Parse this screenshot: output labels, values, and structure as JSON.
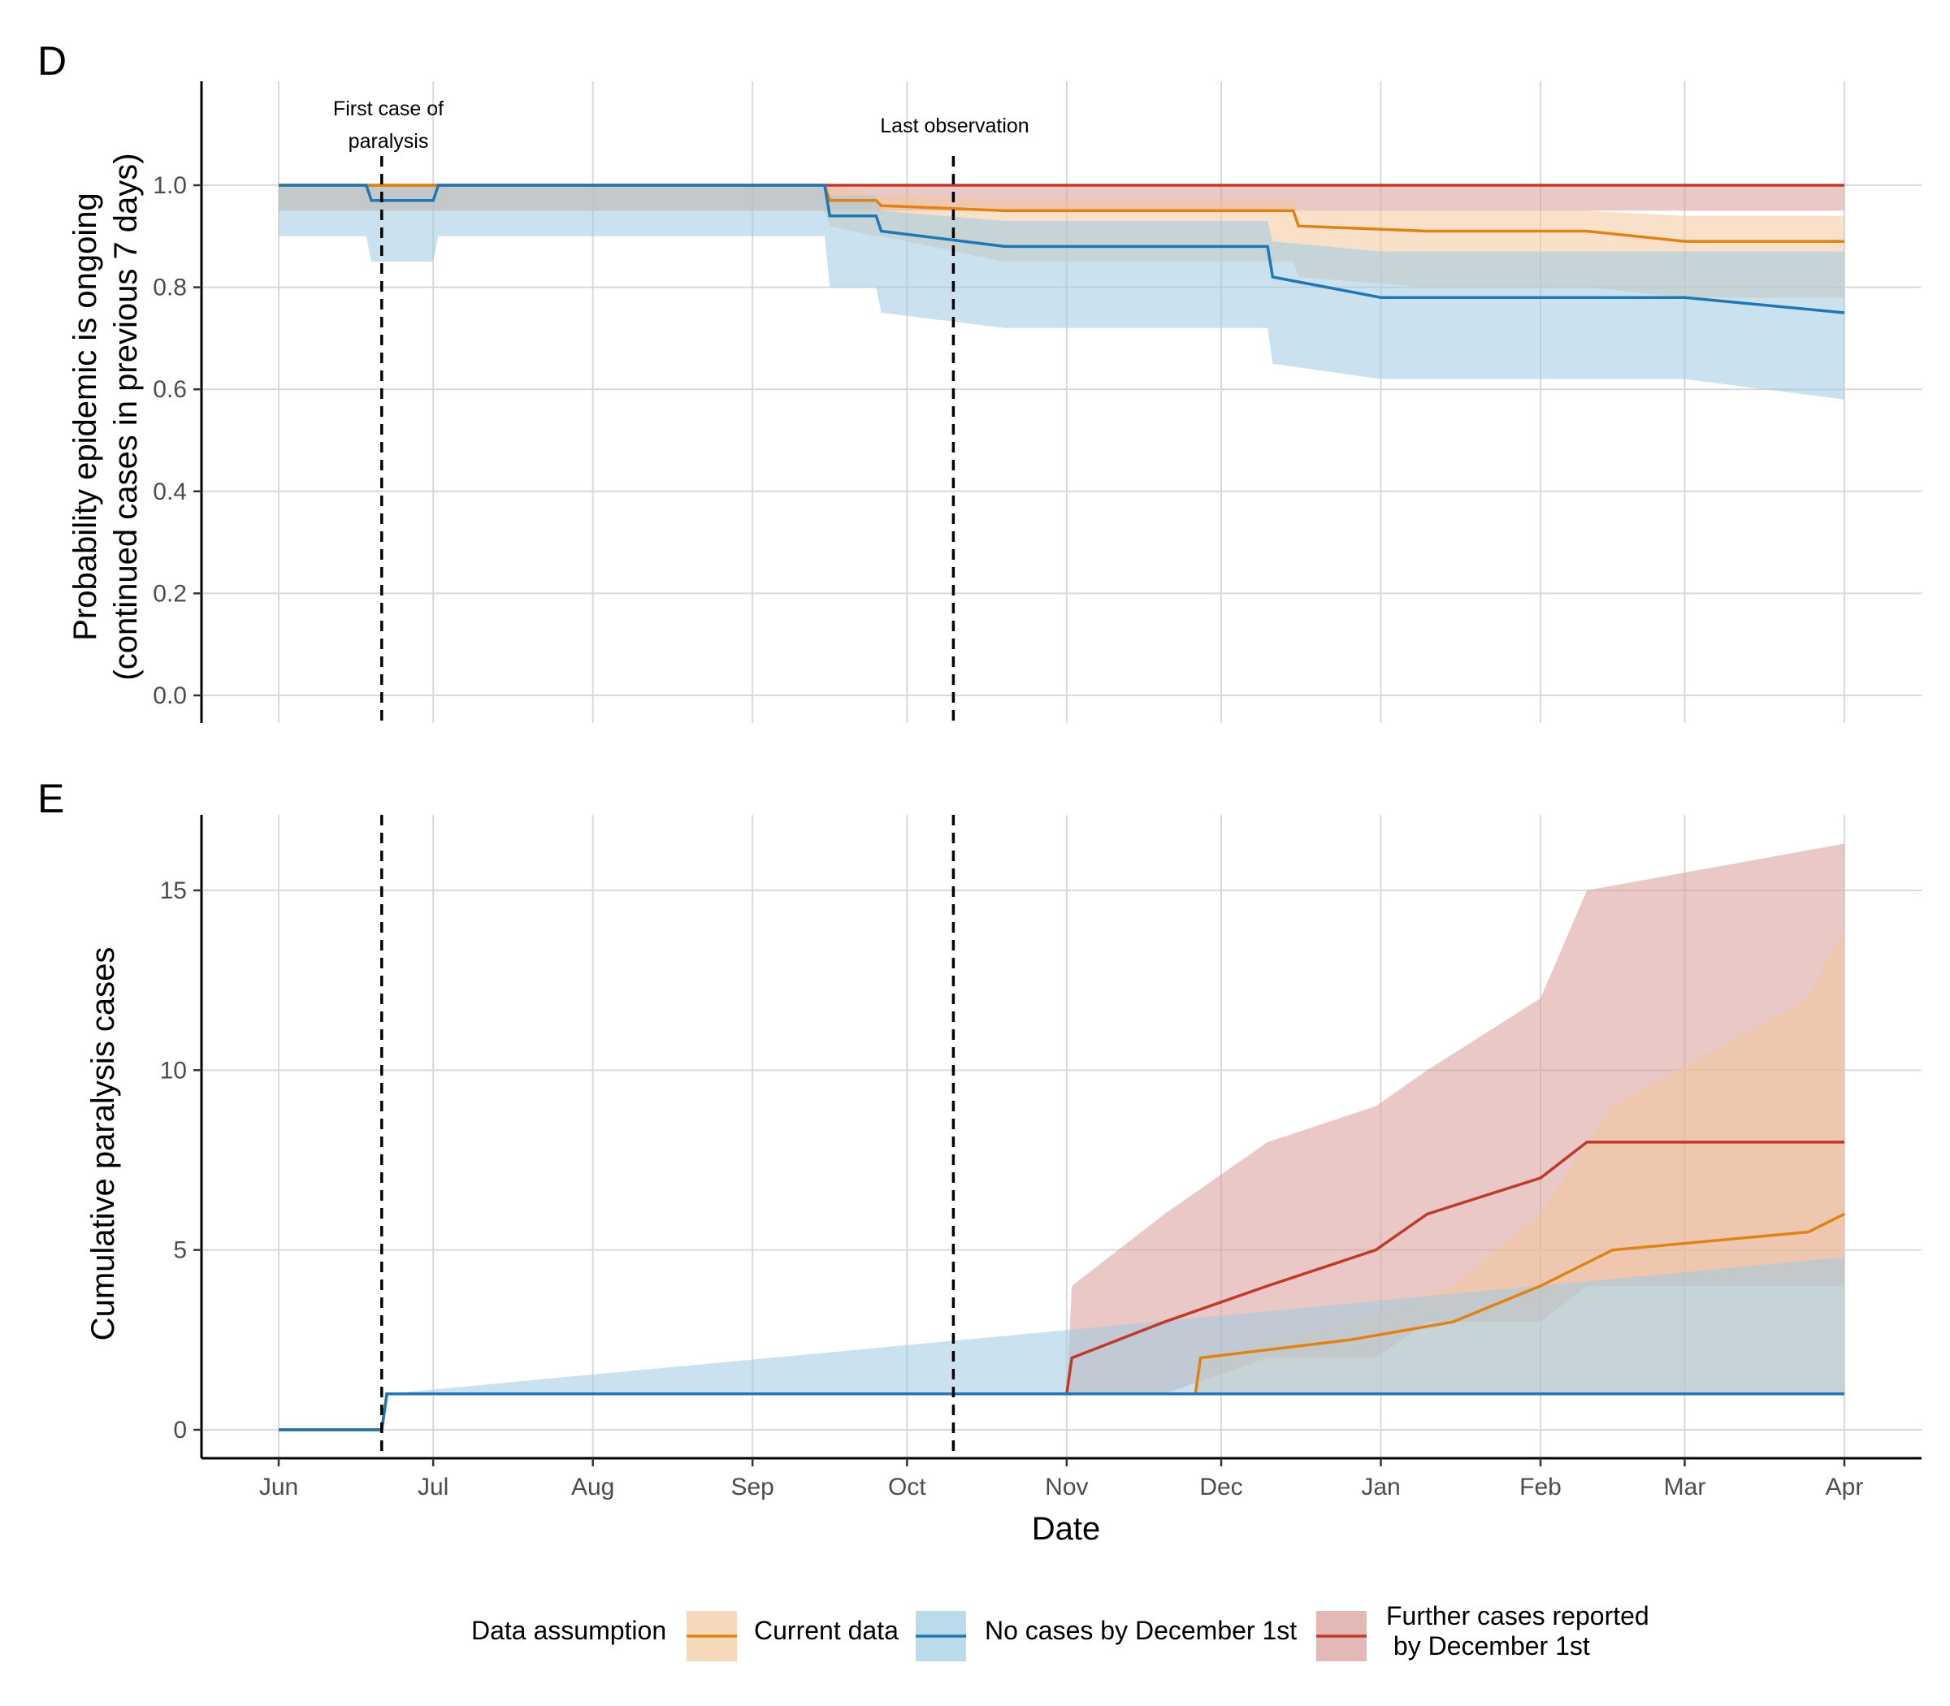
{
  "chart_data": [
    {
      "type": "line",
      "panel": "D",
      "ylabel": "Probability epidemic is ongoing",
      "ylabel_line2": "(continued cases in previous 7 days)",
      "xlabel": "",
      "x_categories": [
        "Jun",
        "Jul",
        "Aug",
        "Sep",
        "Oct",
        "Nov",
        "Dec",
        "Jan",
        "Feb",
        "Mar",
        "Apr"
      ],
      "ylim": [
        0,
        1.05
      ],
      "yticks": [
        "0.0",
        "0.2",
        "0.4",
        "0.6",
        "0.8",
        "1.0"
      ],
      "grid": true,
      "annotations": [
        {
          "text_line1": "First case of",
          "text_line2": "paralysis",
          "x": "Jun 21"
        },
        {
          "text": "Last observation",
          "x": "Oct 10"
        }
      ],
      "series": [
        {
          "name": "Further cases reported by December 1st",
          "color": "#c0392b",
          "ribbon_color": "#d99a95",
          "x": [
            "Jun 1",
            "Apr 1"
          ],
          "y": [
            1.0,
            1.0
          ],
          "lower": [
            0.95,
            0.95
          ],
          "upper": [
            1.0,
            1.0
          ]
        },
        {
          "name": "Current data",
          "color": "#e08214",
          "ribbon_color": "#f2c79d",
          "x": [
            "Jun 1",
            "Sep 15",
            "Sep 16",
            "Sep 25",
            "Sep 26",
            "Oct 20",
            "Dec 15",
            "Dec 16",
            "Jan 10",
            "Feb 10",
            "Mar 1",
            "Apr 1"
          ],
          "y": [
            1.0,
            1.0,
            0.97,
            0.97,
            0.96,
            0.95,
            0.95,
            0.92,
            0.91,
            0.91,
            0.89,
            0.89
          ],
          "lower": [
            0.95,
            0.95,
            0.92,
            0.9,
            0.9,
            0.85,
            0.85,
            0.82,
            0.8,
            0.8,
            0.78,
            0.78
          ],
          "upper": [
            1.0,
            1.0,
            1.0,
            0.98,
            0.98,
            0.97,
            0.97,
            0.95,
            0.95,
            0.95,
            0.94,
            0.94
          ]
        },
        {
          "name": "No cases by December 1st",
          "color": "#1f77b4",
          "ribbon_color": "#9ecae1",
          "x": [
            "Jun 1",
            "Jun 18",
            "Jun 19",
            "Jul 1",
            "Jul 2",
            "Sep 15",
            "Sep 16",
            "Sep 25",
            "Sep 26",
            "Oct 20",
            "Dec 10",
            "Dec 11",
            "Jan 1",
            "Mar 1",
            "Apr 1"
          ],
          "y": [
            1.0,
            1.0,
            0.97,
            0.97,
            1.0,
            1.0,
            0.94,
            0.94,
            0.91,
            0.88,
            0.88,
            0.82,
            0.78,
            0.78,
            0.75
          ],
          "lower": [
            0.9,
            0.9,
            0.85,
            0.85,
            0.9,
            0.9,
            0.8,
            0.8,
            0.75,
            0.72,
            0.72,
            0.65,
            0.62,
            0.62,
            0.58
          ],
          "upper": [
            1.0,
            1.0,
            1.0,
            1.0,
            1.0,
            1.0,
            0.98,
            0.98,
            0.95,
            0.93,
            0.93,
            0.89,
            0.87,
            0.87,
            0.87
          ]
        }
      ]
    },
    {
      "type": "line",
      "panel": "E",
      "ylabel": "Cumulative paralysis cases",
      "xlabel": "Date",
      "x_categories": [
        "Jun",
        "Jul",
        "Aug",
        "Sep",
        "Oct",
        "Nov",
        "Dec",
        "Jan",
        "Feb",
        "Mar",
        "Apr"
      ],
      "ylim": [
        -0.8,
        17
      ],
      "yticks": [
        "0",
        "5",
        "10",
        "15"
      ],
      "grid": true,
      "series": [
        {
          "name": "Further cases reported by December 1st",
          "color": "#c0392b",
          "ribbon_color": "#d99a95",
          "x": [
            "Jun 1",
            "Jun 21",
            "Jun 22",
            "Nov 1",
            "Nov 2",
            "Nov 20",
            "Dec 10",
            "Dec 31",
            "Jan 10",
            "Feb 1",
            "Feb 10",
            "Apr 1"
          ],
          "y": [
            0,
            0,
            1,
            1,
            2,
            3,
            4,
            5,
            6,
            7,
            8,
            8
          ],
          "lower": [
            0,
            0,
            1,
            1,
            1,
            1,
            2,
            2,
            3,
            3,
            4,
            4
          ],
          "upper": [
            0,
            0,
            1,
            1,
            4,
            6,
            8,
            9,
            10,
            12,
            15,
            16.3
          ]
        },
        {
          "name": "Current data",
          "color": "#e08214",
          "ribbon_color": "#f2c79d",
          "x": [
            "Jun 1",
            "Jun 21",
            "Jun 22",
            "Nov 26",
            "Nov 27",
            "Dec 26",
            "Jan 15",
            "Feb 1",
            "Feb 15",
            "Mar 25",
            "Apr 1"
          ],
          "y": [
            0,
            0,
            1,
            1,
            2,
            2.5,
            3,
            4,
            5,
            5.5,
            6
          ],
          "lower": [
            0,
            0,
            1,
            1,
            1,
            1,
            1,
            1,
            1,
            1,
            1
          ],
          "upper": [
            0,
            0,
            1,
            1,
            2,
            3,
            4,
            6,
            9,
            12,
            14
          ]
        },
        {
          "name": "No cases by December 1st",
          "color": "#1f77b4",
          "ribbon_color": "#9ecae1",
          "x": [
            "Jun 1",
            "Jun 21",
            "Jun 22",
            "Apr 1"
          ],
          "y": [
            0,
            0,
            1,
            1
          ],
          "lower": [
            0,
            0,
            1,
            1
          ],
          "upper": [
            0,
            0,
            1,
            4.8
          ]
        }
      ]
    }
  ],
  "legend": {
    "title": "Data assumption",
    "items": [
      {
        "label": "Current data",
        "color": "#e08214",
        "ribbon_color": "#f2c79d"
      },
      {
        "label": "No cases by December 1st",
        "color": "#1f77b4",
        "ribbon_color": "#9ecae1"
      },
      {
        "label_line1": "Further cases reported",
        "label_line2": " by December 1st",
        "color": "#c0392b",
        "ribbon_color": "#d99a95"
      }
    ]
  }
}
